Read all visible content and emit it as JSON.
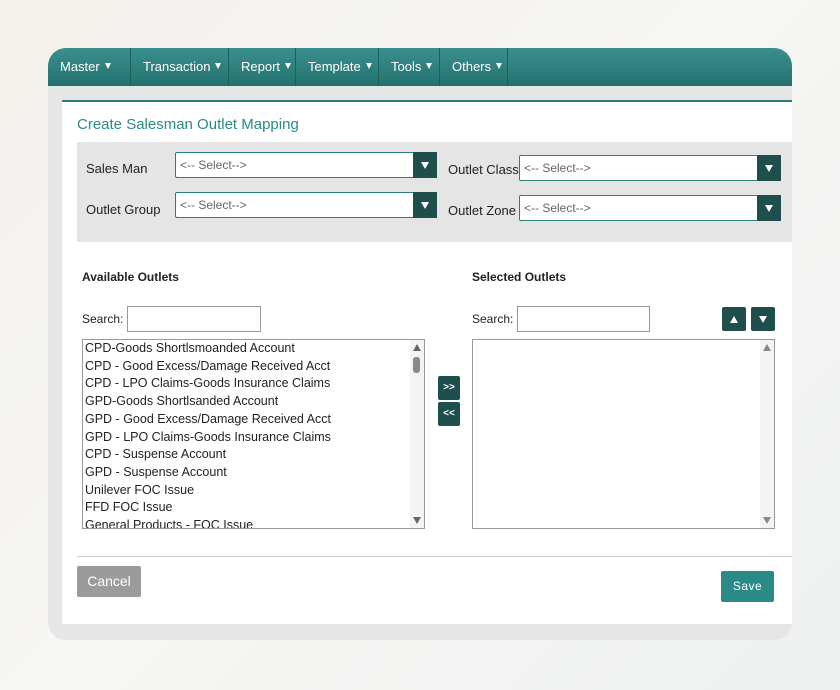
{
  "nav": [
    "Master",
    "Transaction",
    "Report",
    "Template",
    "Tools",
    "Others"
  ],
  "form": {
    "title": "Create Salesman Outlet Mapping",
    "filters": [
      {
        "label": "Sales Man",
        "placeholder": "<-- Select-->"
      },
      {
        "label": "Outlet Class",
        "placeholder": "<-- Select-->"
      },
      {
        "label": "Outlet Group",
        "placeholder": "<-- Select-->"
      },
      {
        "label": "Outlet Zone",
        "placeholder": "<-- Select-->"
      }
    ],
    "available": {
      "title": "Available Outlets",
      "search_label": "Search:",
      "items": [
        "CPD-Goods Shortlsmoanded Account",
        "CPD - Good Excess/Damage Received Acct",
        "CPD - LPO Claims-Goods Insurance Claims",
        "GPD-Goods Shortlsanded Account",
        "GPD - Good Excess/Damage Received Acct",
        "GPD - LPO Claims-Goods Insurance Claims",
        "CPD - Suspense Account",
        "GPD - Suspense Account",
        "Unilever FOC Issue",
        "FFD FOC Issue",
        "General Products - FOC Issue"
      ]
    },
    "selected": {
      "title": "Selected Outlets",
      "search_label": "Search:"
    },
    "move_right": ">>",
    "move_left": "<<",
    "cancel": "Cancel",
    "save": "Save"
  }
}
